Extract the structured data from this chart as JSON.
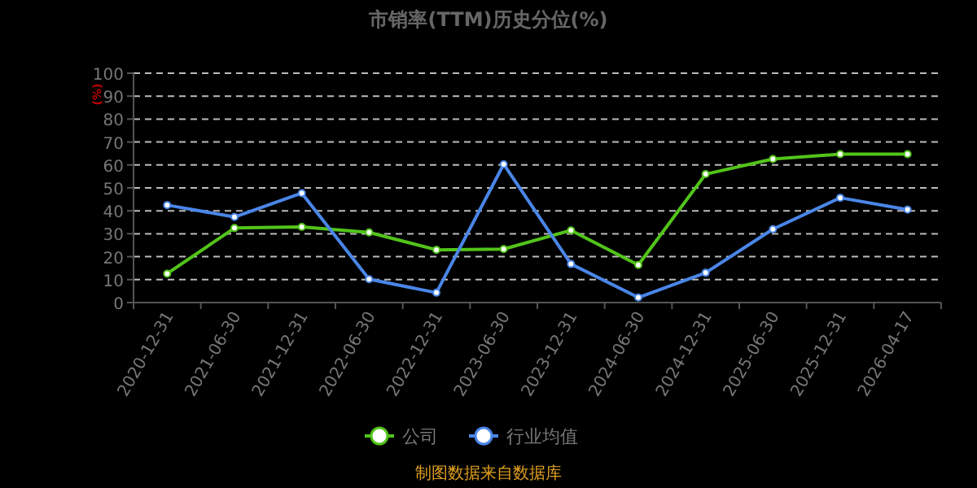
{
  "chart_data": {
    "type": "line",
    "title": "市销率(TTM)历史分位(%)",
    "ylabel": "(%)",
    "categories": [
      "2020-12-31",
      "2021-06-30",
      "2021-12-31",
      "2022-06-30",
      "2022-12-31",
      "2023-06-30",
      "2023-12-31",
      "2024-06-30",
      "2024-12-31",
      "2025-06-30",
      "2025-12-31",
      "2026-04-17"
    ],
    "series": [
      {
        "name": "公司",
        "color": "#52c41a",
        "values": [
          12.6,
          32.5,
          33,
          30.6,
          23,
          23.3,
          31.5,
          16.4,
          56,
          62.6,
          64.7,
          64.7
        ]
      },
      {
        "name": "行业均值",
        "color": "#4a86e8",
        "values": [
          42.5,
          37.3,
          47.7,
          10.2,
          4.3,
          60.3,
          16.8,
          2.2,
          13,
          32,
          45.7,
          40.5
        ]
      }
    ],
    "ylim": [
      0,
      100
    ],
    "yticks": [
      0,
      10,
      20,
      30,
      40,
      50,
      60,
      70,
      80,
      90,
      100
    ],
    "grid": "y",
    "legend": "bottom",
    "marker": "circle",
    "annotations": [
      "制图数据来自数据库"
    ]
  }
}
